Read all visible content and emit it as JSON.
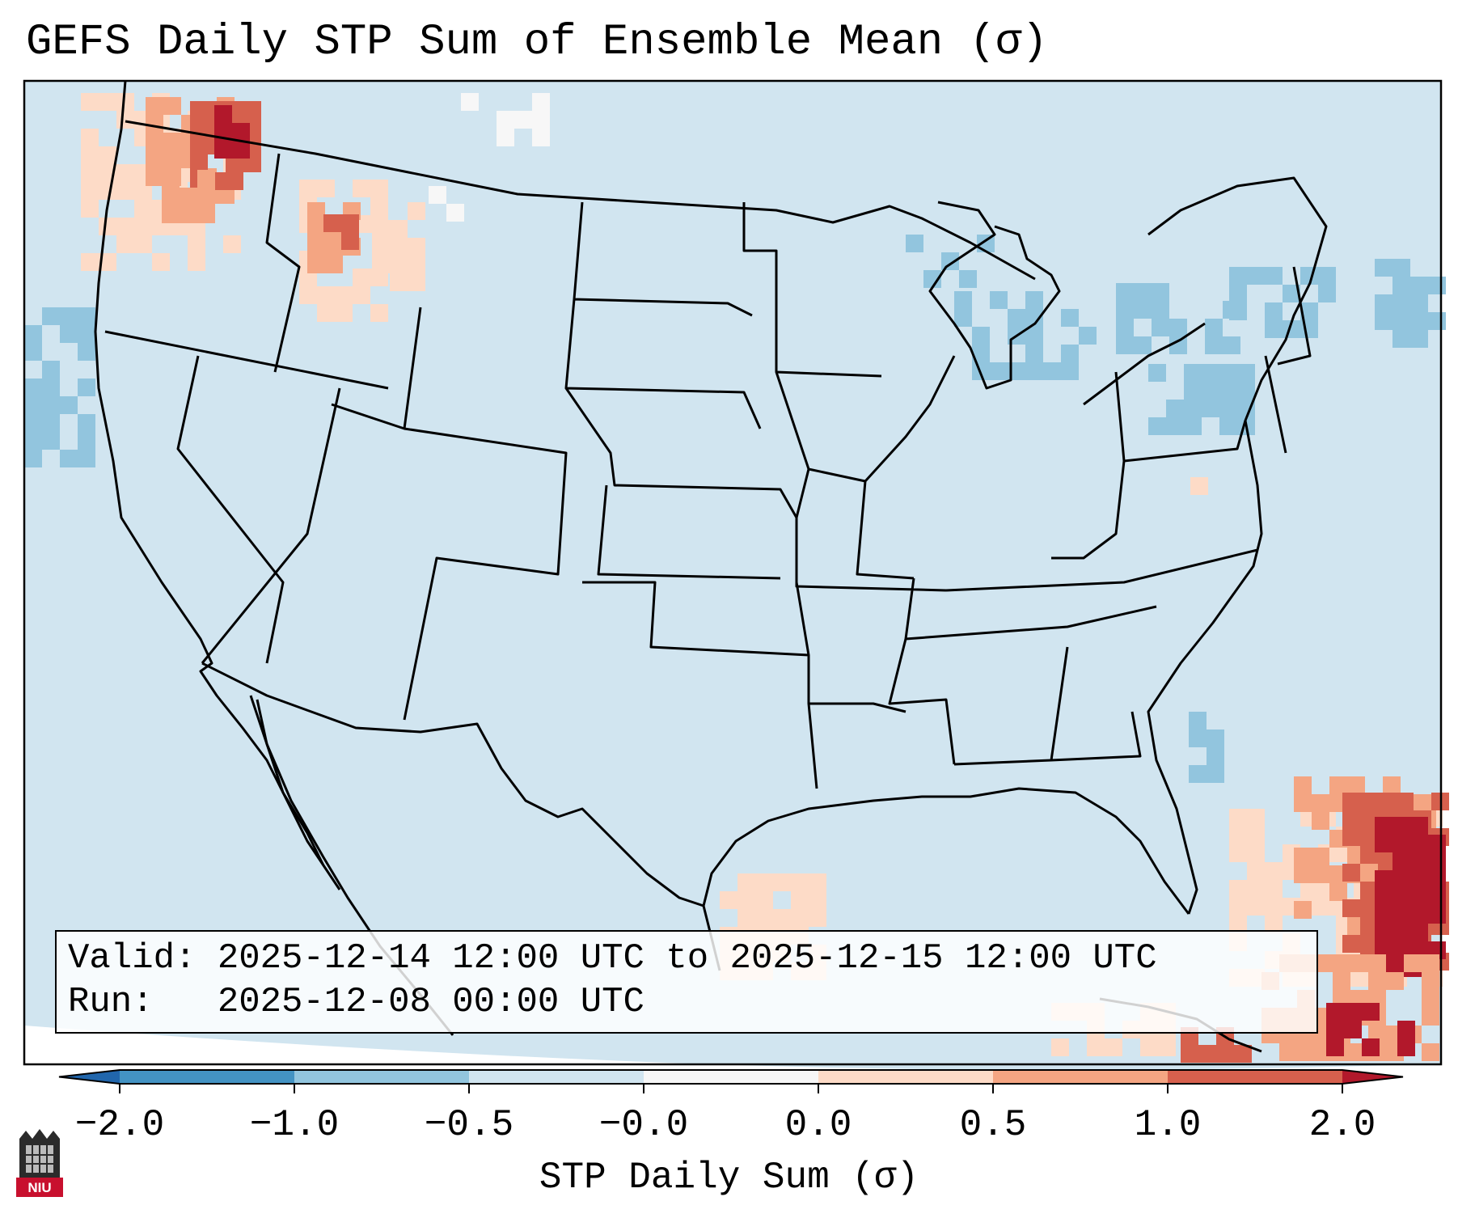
{
  "title": "GEFS Daily STP Sum of Ensemble Mean (σ)",
  "info": {
    "valid_line": "Valid: 2025-12-14 12:00 UTC to 2025-12-15 12:00 UTC",
    "run_line": "Run:   2025-12-08 00:00 UTC"
  },
  "colors": {
    "ocean_land_background": "#d1e5f0",
    "neutral_white": "#f7f7f7",
    "light_red": "#fddbc7",
    "medium_red": "#f4a582",
    "dark_red": "#d6604d",
    "deepest_red": "#b2182b",
    "light_blue": "#92c5de",
    "medium_blue": "#4393c3",
    "deep_blue": "#2166ac"
  },
  "logo": {
    "text": "NIU"
  },
  "chart_data": {
    "type": "heatmap",
    "title": "GEFS Daily STP Sum of Ensemble Mean (σ)",
    "field": "STP Daily Sum anomaly (σ)",
    "region": "Contiguous United States",
    "colorbar": {
      "label": "STP Daily Sum (σ)",
      "ticks": [
        "−2.0",
        "−1.0",
        "−0.5",
        "−0.0",
        "0.0",
        "0.5",
        "1.0",
        "2.0"
      ],
      "bins": [
        {
          "range": [
            -2.0,
            -1.0
          ],
          "color": "#4393c3"
        },
        {
          "range": [
            -1.0,
            -0.5
          ],
          "color": "#92c5de"
        },
        {
          "range": [
            -0.5,
            -0.0
          ],
          "color": "#d1e5f0"
        },
        {
          "range": [
            -0.0,
            0.0
          ],
          "color": "#f7f7f7"
        },
        {
          "range": [
            0.0,
            0.5
          ],
          "color": "#fddbc7"
        },
        {
          "range": [
            0.5,
            1.0
          ],
          "color": "#f4a582"
        },
        {
          "range": [
            1.0,
            2.0
          ],
          "color": "#d6604d"
        }
      ],
      "extend_low_color": "#2166ac",
      "extend_high_color": "#b2182b"
    },
    "anomaly_regions": [
      {
        "area": "Pacific Northwest",
        "level": "0.5 to above 2.0"
      },
      {
        "area": "Northern Rockies",
        "level": "0.0 to 1.0"
      },
      {
        "area": "Great Lakes and Northeast",
        "level": "-1.0 to -0.5"
      },
      {
        "area": "Pacific off Oregon",
        "level": "-1.0 to -0.5"
      },
      {
        "area": "Western Gulf of Mexico",
        "level": "0.0 to 0.5"
      },
      {
        "area": "Florida Straits and Bahamas",
        "level": "0.5 to above 2.0"
      }
    ]
  }
}
